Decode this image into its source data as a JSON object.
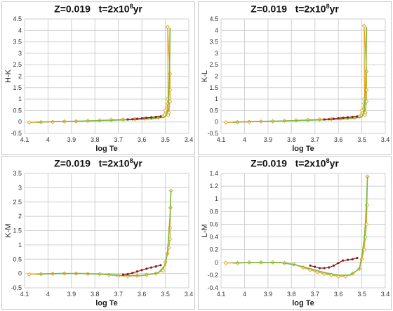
{
  "chart_data": [
    {
      "type": "line",
      "title_parts": {
        "z": "Z=0.019",
        "t_base": "t=2x10",
        "t_exp": "8",
        "t_unit": "yr"
      },
      "xlabel": "log Te",
      "ylabel": "H-K",
      "xlim": [
        4.1,
        3.4
      ],
      "x_ticks": [
        "4.1",
        "4",
        "3.9",
        "3.8",
        "3.7",
        "3.6",
        "3.5",
        "3.4"
      ],
      "ylim": [
        -0.5,
        4.5
      ],
      "y_ticks": [
        "-0.5",
        "0",
        "0.5",
        "1",
        "1.5",
        "2",
        "2.5",
        "3",
        "3.5",
        "4",
        "4.5"
      ],
      "series": [
        {
          "color": "#e8a51c",
          "marker": "diamond",
          "x": [
            4.08,
            4.03,
            3.98,
            3.93,
            3.88,
            3.83,
            3.78,
            3.73,
            3.68,
            3.63,
            3.59,
            3.56,
            3.53,
            3.51,
            3.5,
            3.49,
            3.49,
            3.485,
            3.48,
            3.48,
            3.48,
            3.49,
            3.488
          ],
          "y": [
            -0.02,
            -0.01,
            0.0,
            0.02,
            0.03,
            0.05,
            0.07,
            0.09,
            0.11,
            0.13,
            0.15,
            0.17,
            0.19,
            0.24,
            0.5,
            0.8,
            1.0,
            0.4,
            0.9,
            1.4,
            2.1,
            4.15,
            0.3
          ]
        },
        {
          "color": "#7ab83c",
          "marker": "none",
          "x": [
            4.05,
            3.95,
            3.85,
            3.75,
            3.65,
            3.55,
            3.5,
            3.49,
            3.485,
            3.482,
            3.48
          ],
          "y": [
            -0.01,
            0.02,
            0.04,
            0.07,
            0.1,
            0.14,
            0.22,
            0.5,
            1.2,
            2.2,
            4.1
          ]
        },
        {
          "color": "#8b1a1a",
          "marker": "dot",
          "x": [
            3.66,
            3.64,
            3.62,
            3.6,
            3.58,
            3.56,
            3.54,
            3.52
          ],
          "y": [
            0.11,
            0.12,
            0.14,
            0.16,
            0.18,
            0.2,
            0.22,
            0.24
          ]
        }
      ]
    },
    {
      "type": "line",
      "title_parts": {
        "z": "Z=0.019",
        "t_base": "t=2x10",
        "t_exp": "8",
        "t_unit": "yr"
      },
      "xlabel": "log Te",
      "ylabel": "K-L",
      "xlim": [
        4.1,
        3.4
      ],
      "x_ticks": [
        "4.1",
        "4",
        "3.9",
        "3.8",
        "3.7",
        "3.6",
        "3.5",
        "3.4"
      ],
      "ylim": [
        -0.5,
        4.5
      ],
      "y_ticks": [
        "-0.5",
        "0",
        "0.5",
        "1",
        "1.5",
        "2",
        "2.5",
        "3",
        "3.5",
        "4",
        "4.5"
      ],
      "series": [
        {
          "color": "#e8a51c",
          "marker": "diamond",
          "x": [
            4.08,
            4.03,
            3.98,
            3.93,
            3.88,
            3.83,
            3.78,
            3.73,
            3.68,
            3.63,
            3.59,
            3.56,
            3.53,
            3.51,
            3.5,
            3.49,
            3.49,
            3.485,
            3.48,
            3.48,
            3.48,
            3.49,
            3.488
          ],
          "y": [
            -0.02,
            -0.01,
            0.0,
            0.02,
            0.03,
            0.05,
            0.07,
            0.09,
            0.11,
            0.13,
            0.15,
            0.17,
            0.19,
            0.24,
            0.5,
            0.8,
            1.0,
            0.4,
            0.9,
            1.4,
            2.2,
            4.2,
            0.3
          ]
        },
        {
          "color": "#7ab83c",
          "marker": "none",
          "x": [
            4.05,
            3.95,
            3.85,
            3.75,
            3.65,
            3.55,
            3.5,
            3.49,
            3.485,
            3.482,
            3.48
          ],
          "y": [
            -0.01,
            0.02,
            0.04,
            0.07,
            0.1,
            0.14,
            0.22,
            0.5,
            1.2,
            2.3,
            4.15
          ]
        },
        {
          "color": "#8b1a1a",
          "marker": "dot",
          "x": [
            3.66,
            3.64,
            3.62,
            3.6,
            3.58,
            3.56,
            3.54,
            3.52
          ],
          "y": [
            0.11,
            0.12,
            0.14,
            0.16,
            0.18,
            0.2,
            0.22,
            0.24
          ]
        }
      ]
    },
    {
      "type": "line",
      "title_parts": {
        "z": "Z=0.019",
        "t_base": "t=2x10",
        "t_exp": "8",
        "t_unit": "yr"
      },
      "xlabel": "log Te",
      "ylabel": "K-M",
      "xlim": [
        4.1,
        3.4
      ],
      "x_ticks": [
        "4.1",
        "4",
        "3.9",
        "3.8",
        "3.7",
        "3.6",
        "3.5",
        "3.4"
      ],
      "ylim": [
        -0.5,
        3.5
      ],
      "y_ticks": [
        "-0.5",
        "0",
        "0.5",
        "1",
        "1.5",
        "2",
        "2.5",
        "3",
        "3.5"
      ],
      "series": [
        {
          "color": "#e8a51c",
          "marker": "diamond",
          "x": [
            4.08,
            4.03,
            3.98,
            3.93,
            3.88,
            3.83,
            3.78,
            3.74,
            3.7,
            3.66,
            3.62,
            3.58,
            3.54,
            3.51,
            3.5,
            3.49,
            3.485,
            3.48,
            3.48,
            3.478,
            3.476
          ],
          "y": [
            -0.03,
            -0.02,
            -0.01,
            0.0,
            0.0,
            -0.01,
            -0.02,
            -0.05,
            -0.08,
            -0.09,
            -0.08,
            -0.05,
            0.0,
            0.1,
            0.4,
            0.7,
            0.9,
            1.2,
            1.6,
            2.3,
            2.9
          ]
        },
        {
          "color": "#7ab83c",
          "marker": "none",
          "x": [
            4.05,
            3.95,
            3.85,
            3.75,
            3.68,
            3.6,
            3.53,
            3.5,
            3.49,
            3.485,
            3.48,
            3.478,
            3.476
          ],
          "y": [
            -0.02,
            0.0,
            0.0,
            -0.03,
            -0.07,
            -0.07,
            0.02,
            0.3,
            0.8,
            1.4,
            2.0,
            2.5,
            2.9
          ]
        },
        {
          "color": "#8b1a1a",
          "marker": "dot",
          "x": [
            3.68,
            3.66,
            3.64,
            3.62,
            3.6,
            3.58,
            3.56,
            3.54,
            3.52
          ],
          "y": [
            -0.04,
            -0.02,
            0.02,
            0.07,
            0.12,
            0.17,
            0.21,
            0.25,
            0.29
          ]
        }
      ]
    },
    {
      "type": "line",
      "title_parts": {
        "z": "Z=0.019",
        "t_base": "t=2x10",
        "t_exp": "8",
        "t_unit": "yr"
      },
      "xlabel": "log Te",
      "ylabel": "L-M",
      "xlim": [
        4.1,
        3.4
      ],
      "x_ticks": [
        "4.1",
        "4",
        "3.9",
        "3.8",
        "3.7",
        "3.6",
        "3.5",
        "3.4"
      ],
      "ylim": [
        -0.4,
        1.4
      ],
      "y_ticks": [
        "-0.4",
        "-0.2",
        "0",
        "0.2",
        "0.4",
        "0.6",
        "0.8",
        "1",
        "1.2",
        "1.4"
      ],
      "series": [
        {
          "color": "#e8a51c",
          "marker": "diamond",
          "x": [
            4.08,
            4.03,
            3.98,
            3.93,
            3.88,
            3.83,
            3.79,
            3.75,
            3.72,
            3.69,
            3.66,
            3.63,
            3.6,
            3.57,
            3.54,
            3.51,
            3.5,
            3.49,
            3.485,
            3.48,
            3.478,
            3.476
          ],
          "y": [
            -0.01,
            -0.01,
            0.0,
            0.0,
            0.0,
            -0.01,
            -0.03,
            -0.08,
            -0.12,
            -0.15,
            -0.18,
            -0.2,
            -0.22,
            -0.22,
            -0.18,
            -0.1,
            0.05,
            0.2,
            0.4,
            0.6,
            0.9,
            1.35
          ]
        },
        {
          "color": "#7ab83c",
          "marker": "none",
          "x": [
            4.05,
            3.95,
            3.85,
            3.78,
            3.72,
            3.66,
            3.6,
            3.55,
            3.51,
            3.5,
            3.49,
            3.485,
            3.48,
            3.476
          ],
          "y": [
            -0.01,
            0.0,
            0.0,
            -0.04,
            -0.1,
            -0.16,
            -0.2,
            -0.2,
            -0.1,
            0.1,
            0.35,
            0.6,
            0.95,
            1.35
          ]
        },
        {
          "color": "#8b1a1a",
          "marker": "dot",
          "x": [
            3.72,
            3.7,
            3.68,
            3.66,
            3.64,
            3.62,
            3.6,
            3.58,
            3.56,
            3.54,
            3.52
          ],
          "y": [
            -0.05,
            -0.07,
            -0.09,
            -0.09,
            -0.08,
            -0.05,
            -0.01,
            0.03,
            0.04,
            0.05,
            0.07
          ]
        }
      ]
    }
  ]
}
